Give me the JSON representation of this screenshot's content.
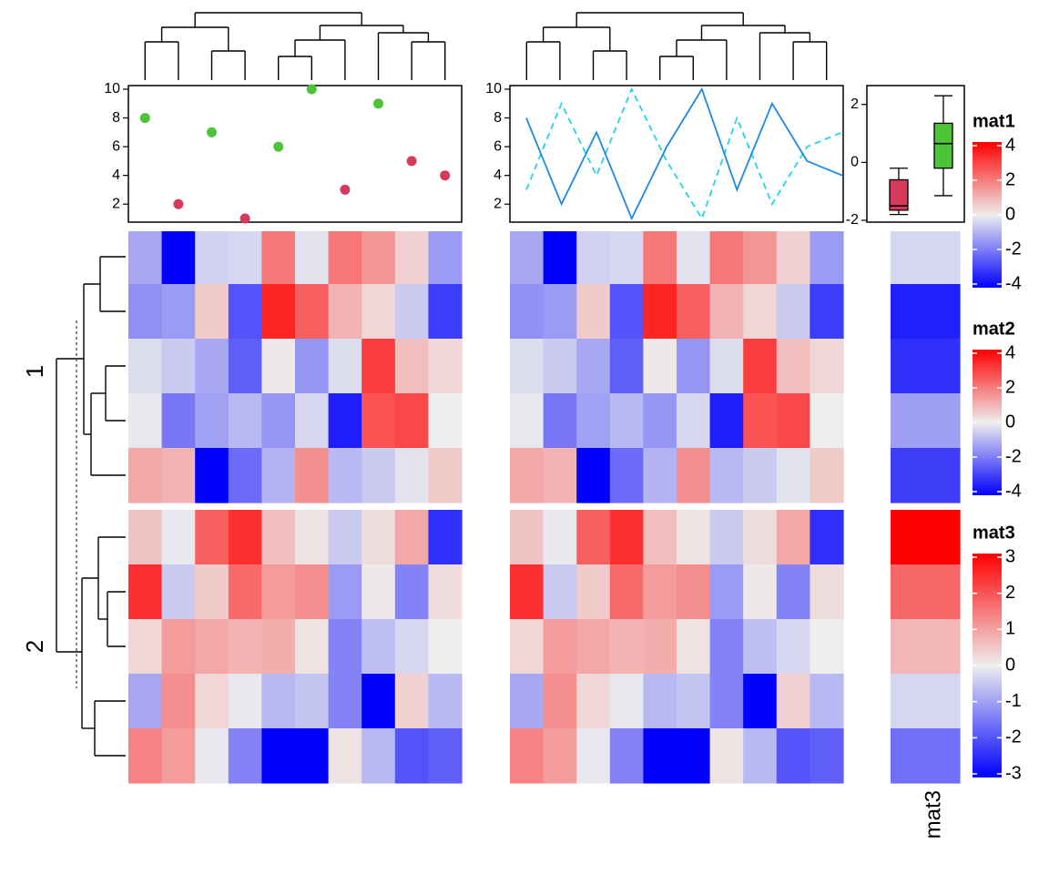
{
  "colors": {
    "low": "#0000ff",
    "mid": "#eeeeee",
    "high": "#ff0000",
    "point_green": "#4dc437",
    "point_red": "#d6395a",
    "line_solid": "#1e88e5",
    "line_dashed": "#22d3e6",
    "box_red": "#d6395a",
    "box_green": "#4dc437"
  },
  "chart_data": {
    "type": "heatmap",
    "row_splits": [
      "1",
      "2"
    ],
    "heatmaps": [
      {
        "name": "mat1",
        "ncol": 10,
        "values": [
          [
            -1.2,
            -4.0,
            -0.5,
            -0.4,
            2.0,
            -0.2,
            2.0,
            1.5,
            0.5,
            -1.4
          ],
          [
            -1.6,
            -1.4,
            0.6,
            -2.6,
            3.4,
            2.4,
            1.0,
            0.4,
            -0.6,
            -3.0
          ],
          [
            -0.3,
            -0.6,
            -1.2,
            -2.4,
            0.1,
            -1.5,
            -0.3,
            3.0,
            0.8,
            0.4
          ],
          [
            -0.1,
            -2.0,
            -1.3,
            -0.9,
            -1.5,
            -0.4,
            -3.5,
            2.6,
            2.8,
            0.0
          ],
          [
            1.2,
            1.0,
            -4.0,
            -2.2,
            -1.0,
            1.6,
            -0.9,
            -0.6,
            -0.2,
            0.6
          ],
          [
            0.7,
            -0.1,
            2.4,
            3.2,
            0.8,
            0.2,
            -0.6,
            0.3,
            1.2,
            -3.2
          ],
          [
            3.2,
            -0.6,
            0.6,
            2.2,
            1.4,
            1.6,
            -1.4,
            0.1,
            -1.8,
            0.3
          ],
          [
            0.4,
            1.4,
            1.2,
            1.0,
            1.1,
            0.2,
            -1.8,
            -0.8,
            -0.4,
            0.0
          ],
          [
            -1.2,
            1.6,
            0.4,
            -0.1,
            -0.9,
            -0.7,
            -1.8,
            -4.0,
            0.5,
            -0.9
          ],
          [
            1.8,
            1.4,
            -0.1,
            -1.8,
            -4.0,
            -4.0,
            0.2,
            -0.9,
            -2.6,
            -2.4
          ]
        ]
      },
      {
        "name": "mat2",
        "ncol": 10,
        "values": [
          [
            -1.2,
            -4.0,
            -0.5,
            -0.4,
            2.0,
            -0.2,
            2.0,
            1.5,
            0.5,
            -1.4
          ],
          [
            -1.6,
            -1.4,
            0.6,
            -2.6,
            3.4,
            2.4,
            1.0,
            0.4,
            -0.6,
            -3.0
          ],
          [
            -0.3,
            -0.6,
            -1.2,
            -2.4,
            0.1,
            -1.5,
            -0.3,
            3.0,
            0.8,
            0.4
          ],
          [
            -0.1,
            -2.0,
            -1.3,
            -0.9,
            -1.5,
            -0.4,
            -3.5,
            2.6,
            2.8,
            0.0
          ],
          [
            1.2,
            1.0,
            -4.0,
            -2.2,
            -1.0,
            1.6,
            -0.9,
            -0.6,
            -0.2,
            0.6
          ],
          [
            0.7,
            -0.1,
            2.4,
            3.2,
            0.8,
            0.2,
            -0.6,
            0.3,
            1.2,
            -3.2
          ],
          [
            3.2,
            -0.6,
            0.6,
            2.2,
            1.4,
            1.6,
            -1.4,
            0.1,
            -1.8,
            0.3
          ],
          [
            0.4,
            1.4,
            1.2,
            1.0,
            1.1,
            0.2,
            -1.8,
            -0.8,
            -0.4,
            0.0
          ],
          [
            -1.2,
            1.6,
            0.4,
            -0.1,
            -0.9,
            -0.7,
            -1.8,
            -4.0,
            0.5,
            -0.9
          ],
          [
            1.8,
            1.4,
            -0.1,
            -1.8,
            -4.0,
            -4.0,
            0.2,
            -0.9,
            -2.6,
            -2.4
          ]
        ]
      },
      {
        "name": "mat3",
        "ncol": 1,
        "column_label": "mat3",
        "values": [
          [
            -0.3
          ],
          [
            -2.6
          ],
          [
            -2.4
          ],
          [
            -1.0
          ],
          [
            -2.2
          ],
          [
            3.0
          ],
          [
            1.7
          ],
          [
            0.7
          ],
          [
            -0.3
          ],
          [
            -1.6
          ]
        ]
      }
    ],
    "legends": [
      {
        "title": "mat1",
        "ticks": [
          "4",
          "2",
          "0",
          "-2",
          "-4"
        ],
        "range": [
          -4,
          4
        ]
      },
      {
        "title": "mat2",
        "ticks": [
          "4",
          "2",
          "0",
          "-2",
          "-4"
        ],
        "range": [
          -4,
          4
        ]
      },
      {
        "title": "mat3",
        "ticks": [
          "3",
          "2",
          "1",
          "0",
          "-1",
          "-2",
          "-3"
        ],
        "range": [
          -3,
          3
        ]
      }
    ],
    "top_annotations": {
      "scatter": {
        "y_ticks": [
          "10",
          "8",
          "6",
          "4",
          "2"
        ],
        "ylim": [
          1,
          10
        ],
        "points": [
          {
            "y": 8,
            "group": "green"
          },
          {
            "y": 2,
            "group": "red"
          },
          {
            "y": 7,
            "group": "green"
          },
          {
            "y": 1,
            "group": "red"
          },
          {
            "y": 6,
            "group": "green"
          },
          {
            "y": 10,
            "group": "green"
          },
          {
            "y": 3,
            "group": "red"
          },
          {
            "y": 9,
            "group": "green"
          },
          {
            "y": 5,
            "group": "red"
          },
          {
            "y": 4,
            "group": "red"
          }
        ]
      },
      "lines": {
        "y_ticks": [
          "10",
          "8",
          "6",
          "4",
          "2"
        ],
        "ylim": [
          1,
          10
        ],
        "solid": [
          8,
          2,
          7,
          1,
          6,
          10,
          3,
          9,
          5,
          4
        ],
        "dashed": [
          3,
          9,
          4,
          10,
          5,
          1,
          8,
          2,
          6,
          7
        ]
      },
      "boxplot": {
        "y_ticks": [
          "2",
          "0",
          "-2"
        ],
        "ylim": [
          -2,
          2.4
        ],
        "boxes": [
          {
            "group": "red",
            "min": -1.8,
            "q1": -1.65,
            "median": -1.5,
            "q3": -0.6,
            "max": -0.2
          },
          {
            "group": "green",
            "min": -1.15,
            "q1": -0.2,
            "median": 0.65,
            "q3": 1.35,
            "max": 2.3
          }
        ]
      }
    }
  }
}
